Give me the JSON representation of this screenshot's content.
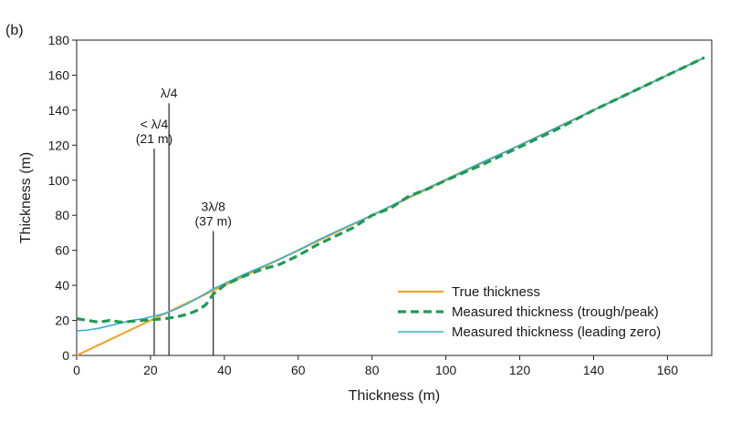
{
  "panel_label": "(b)",
  "chart_data": {
    "type": "line",
    "title": "",
    "xlabel": "Thickness (m)",
    "ylabel": "Thickness (m)",
    "xlim": [
      0,
      172
    ],
    "ylim": [
      0,
      180
    ],
    "xticks": [
      0,
      20,
      40,
      60,
      80,
      100,
      120,
      140,
      160
    ],
    "yticks": [
      0,
      20,
      40,
      60,
      80,
      100,
      120,
      140,
      160,
      180
    ],
    "legend_position": "bottom-right",
    "series": [
      {
        "name": "True thickness",
        "color": "#f0a830",
        "style": "solid",
        "x": [
          0,
          170
        ],
        "y": [
          0,
          170
        ]
      },
      {
        "name": "Measured thickness (trough/peak)",
        "color": "#1f9a55",
        "style": "dashed",
        "x": [
          0,
          3,
          6,
          9,
          12,
          15,
          18,
          21,
          24,
          27,
          30,
          33,
          35,
          37,
          40,
          45,
          50,
          55,
          60,
          65,
          70,
          75,
          80,
          85,
          90,
          95,
          100,
          110,
          120,
          130,
          140,
          150,
          160,
          170
        ],
        "y": [
          21,
          20,
          19,
          20,
          19,
          19.5,
          20,
          20.5,
          21,
          22,
          23.5,
          26,
          29,
          35,
          40,
          45,
          49,
          52,
          57,
          63,
          68,
          73,
          80,
          84,
          91,
          95,
          100,
          109,
          119,
          129,
          140,
          150,
          160,
          170
        ]
      },
      {
        "name": "Measured thickness (leading zero)",
        "color": "#3aaed8",
        "style": "solid",
        "x": [
          0,
          3,
          6,
          9,
          12,
          15,
          18,
          21,
          24,
          27,
          30,
          33,
          37,
          40,
          45,
          50,
          55,
          60,
          65,
          70,
          80,
          90,
          100,
          110,
          120,
          130,
          140,
          150,
          160,
          170
        ],
        "y": [
          14,
          14.5,
          15.5,
          17,
          18.5,
          20,
          21,
          22.5,
          24,
          26.5,
          29.5,
          33,
          38,
          41,
          46,
          50.5,
          55,
          60,
          65.5,
          70.5,
          80,
          90.5,
          100.5,
          110.5,
          120,
          130,
          140,
          150,
          160,
          170
        ]
      }
    ],
    "annotations": [
      {
        "x": 21,
        "y_top": 118,
        "lines": [
          "< λ/4",
          "(21 m)"
        ]
      },
      {
        "x": 25,
        "y_top": 144,
        "lines": [
          "λ/4"
        ]
      },
      {
        "x": 37,
        "y_top": 71,
        "lines": [
          "3λ/8",
          "(37 m)"
        ]
      }
    ]
  }
}
